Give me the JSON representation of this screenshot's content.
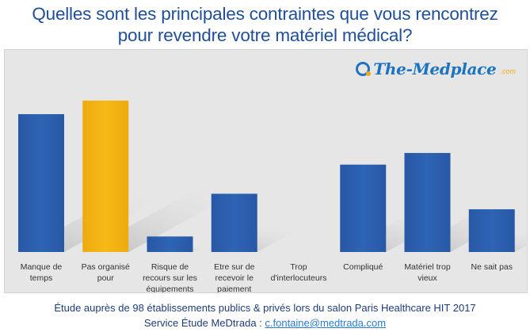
{
  "title_line1": "Quelles sont les principales contraintes que vous rencontrez",
  "title_line2": "pour revendre votre matériel médical?",
  "logo": {
    "name": "The-Medplace",
    "tld": ".com"
  },
  "footer": {
    "line1": "Étude auprès de 98 établissements publics & privés lors du salon Paris Healthcare HIT 2017",
    "line2_prefix": "Service Étude MeDtrada : ",
    "email": "c.fontaine@medtrada.com"
  },
  "colors": {
    "bar": "#2e64b4",
    "highlight": "#f6b917",
    "title": "#1f4e9c",
    "background": "#e6e6e6"
  },
  "chart_data": {
    "type": "bar",
    "categories": [
      [
        "Manque de",
        "temps"
      ],
      [
        "Pas organisé",
        "pour"
      ],
      [
        "Risque de",
        "recours sur les",
        "équipements"
      ],
      [
        "Etre sur de",
        "recevoir le",
        "paiement"
      ],
      [
        "Trop",
        "d'interlocuteurs"
      ],
      [
        "Compliqué"
      ],
      [
        "Matériel trop",
        "vieux"
      ],
      [
        "Ne sait pas"
      ]
    ],
    "values": [
      71,
      78,
      8,
      30,
      0,
      45,
      51,
      22
    ],
    "highlight_index": 1,
    "ylim": [
      0,
      100
    ],
    "grid": false,
    "legend": "none"
  }
}
